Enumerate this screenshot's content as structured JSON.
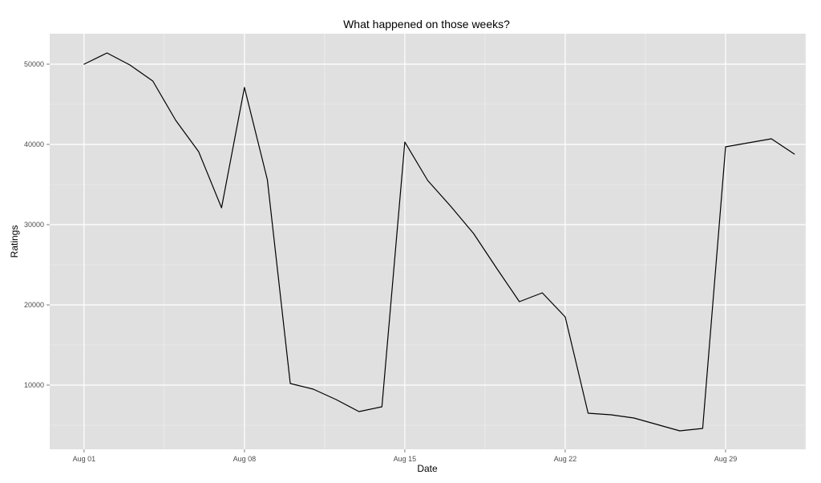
{
  "chart_data": {
    "type": "line",
    "title": "What happened on those weeks?",
    "xlabel": "Date",
    "ylabel": "Ratings",
    "x_ticks": [
      "Aug 01",
      "Aug 08",
      "Aug 15",
      "Aug 22",
      "Aug 29"
    ],
    "y_ticks": [
      "10000",
      "20000",
      "30000",
      "40000",
      "50000"
    ],
    "x_tick_days": [
      1,
      8,
      15,
      22,
      29
    ],
    "y_tick_values": [
      10000,
      20000,
      30000,
      40000,
      50000
    ],
    "xlim": [
      -0.5,
      32.5
    ],
    "ylim": [
      2000,
      53800
    ],
    "grid": true,
    "colors": {
      "panel": "#e0e0e0",
      "grid": "#ffffff",
      "line": "#000000"
    },
    "series": [
      {
        "x": [
          "Aug 01",
          "Aug 02",
          "Aug 03",
          "Aug 04",
          "Aug 05",
          "Aug 06",
          "Aug 07",
          "Aug 08",
          "Aug 09",
          "Aug 10",
          "Aug 11",
          "Aug 12",
          "Aug 13",
          "Aug 14",
          "Aug 15",
          "Aug 16",
          "Aug 17",
          "Aug 18",
          "Aug 19",
          "Aug 20",
          "Aug 21",
          "Aug 22",
          "Aug 23",
          "Aug 24",
          "Aug 25",
          "Aug 26",
          "Aug 27",
          "Aug 28",
          "Aug 29",
          "Aug 30",
          "Aug 31",
          "Sep 01"
        ],
        "values": [
          50000,
          51400,
          49900,
          47900,
          43000,
          39100,
          32100,
          47100,
          35600,
          10200,
          9500,
          8200,
          6700,
          7300,
          40300,
          35500,
          32300,
          28900,
          24600,
          20400,
          21500,
          18500,
          6500,
          6300,
          5900,
          5100,
          4300,
          4600,
          39700,
          40200,
          40700,
          38800
        ]
      }
    ]
  }
}
